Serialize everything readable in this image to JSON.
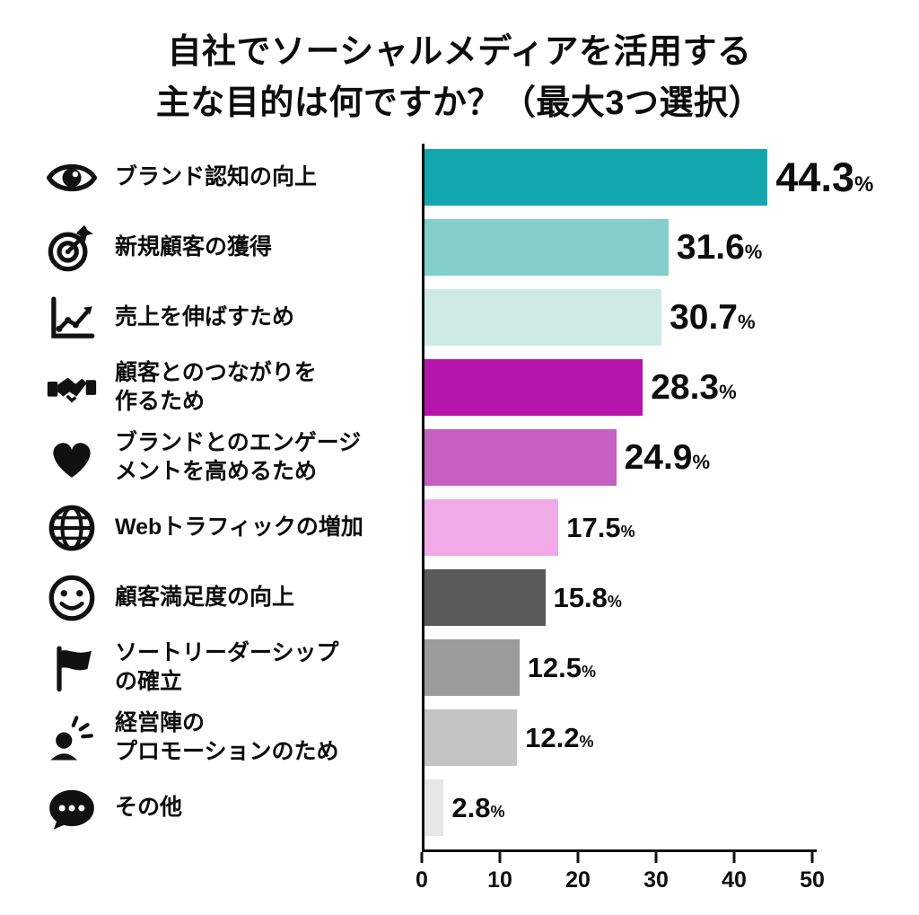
{
  "title": {
    "line1": "自社でソーシャルメディアを活用する",
    "line2": "主な目的は何ですか？（最大3つ選択）"
  },
  "chart_data": {
    "type": "bar",
    "orientation": "horizontal",
    "title": "自社でソーシャルメディアを活用する主な目的は何ですか？（最大3つ選択）",
    "unit": "%",
    "xlim": [
      0,
      50
    ],
    "x_ticks": [
      0,
      10,
      20,
      30,
      40,
      50
    ],
    "grid": false,
    "legend": "none",
    "categories": [
      "ブランド認知の向上",
      "新規顧客の獲得",
      "売上を伸ばすため",
      "顧客とのつながりを作るため",
      "ブランドとのエンゲージメントを高めるため",
      "Webトラフィックの増加",
      "顧客満足度の向上",
      "ソートリーダーシップの確立",
      "経営陣のプロモーションのため",
      "その他"
    ],
    "values": [
      44.3,
      31.6,
      30.7,
      28.3,
      24.9,
      17.5,
      15.8,
      12.5,
      12.2,
      2.8
    ],
    "rows": [
      {
        "label_lines": [
          "ブランド認知の向上"
        ],
        "icon": "eye-icon",
        "value": 44.3,
        "display": "44.3",
        "color": "#12a7ac",
        "size": "xl"
      },
      {
        "label_lines": [
          "新規顧客の獲得"
        ],
        "icon": "target-icon",
        "value": 31.6,
        "display": "31.6",
        "color": "#82cfc9",
        "size": "lg"
      },
      {
        "label_lines": [
          "売上を伸ばすため"
        ],
        "icon": "growth-chart-icon",
        "value": 30.7,
        "display": "30.7",
        "color": "#cdeae6",
        "size": "lg"
      },
      {
        "label_lines": [
          "顧客とのつながりを",
          "作るため"
        ],
        "icon": "handshake-icon",
        "value": 28.3,
        "display": "28.3",
        "color": "#b515ab",
        "size": "lg"
      },
      {
        "label_lines": [
          "ブランドとのエンゲージ",
          "メントを高めるため"
        ],
        "icon": "heart-icon",
        "value": 24.9,
        "display": "24.9",
        "color": "#c55fc0",
        "size": "lg"
      },
      {
        "label_lines": [
          "Webトラフィックの増加"
        ],
        "icon": "globe-icon",
        "value": 17.5,
        "display": "17.5",
        "color": "#f0aae8",
        "size": "md"
      },
      {
        "label_lines": [
          "顧客満足度の向上"
        ],
        "icon": "smiley-icon",
        "value": 15.8,
        "display": "15.8",
        "color": "#5a5a5a",
        "size": "md"
      },
      {
        "label_lines": [
          "ソートリーダーシップ",
          "の確立"
        ],
        "icon": "flag-icon",
        "value": 12.5,
        "display": "12.5",
        "color": "#9b9b9b",
        "size": "md"
      },
      {
        "label_lines": [
          "経営陣の",
          "プロモーションのため"
        ],
        "icon": "person-announce-icon",
        "value": 12.2,
        "display": "12.2",
        "color": "#c4c4c4",
        "size": "md"
      },
      {
        "label_lines": [
          "その他"
        ],
        "icon": "speech-bubble-icon",
        "value": 2.8,
        "display": "2.8",
        "color": "#e7e7e7",
        "size": "md"
      }
    ]
  }
}
